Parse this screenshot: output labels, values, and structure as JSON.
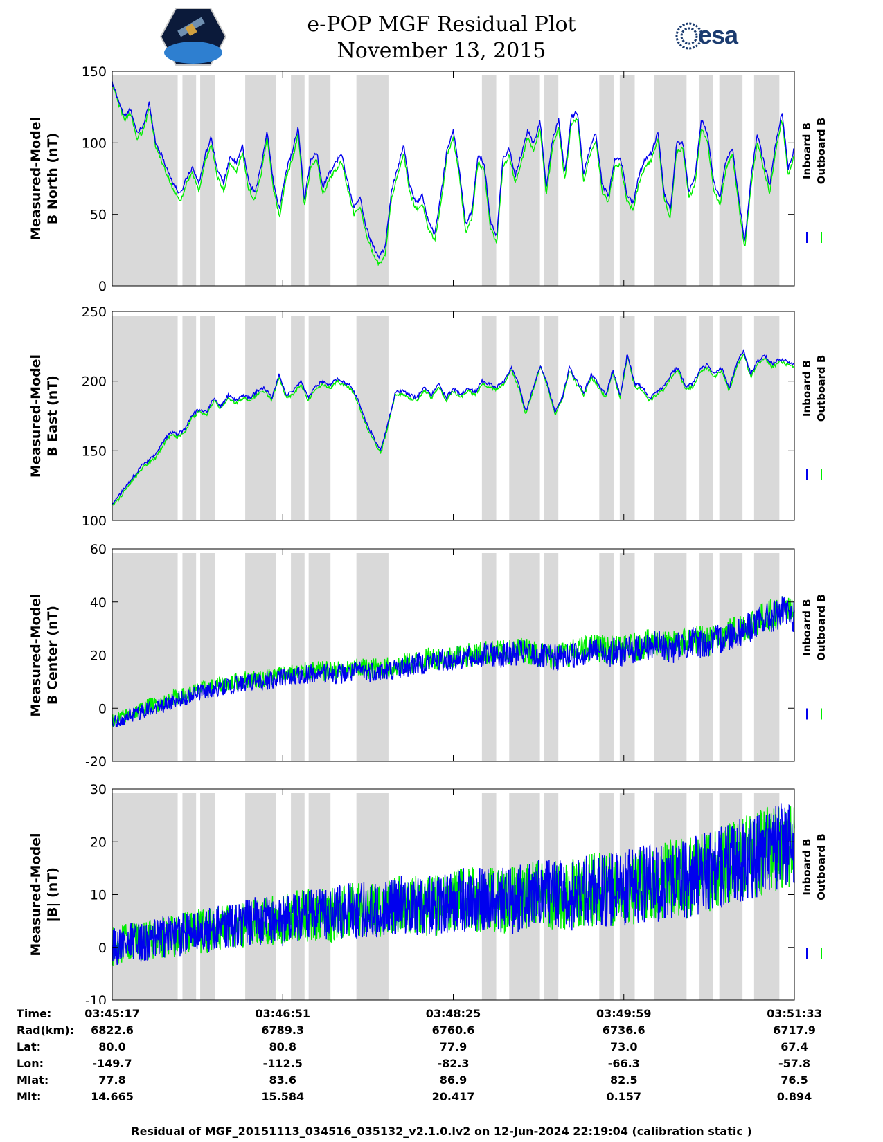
{
  "header": {
    "title": "e-POP MGF Residual Plot",
    "subtitle": "November 13, 2015",
    "logo_left_icon": "satellite-mission-badge-icon",
    "logo_right_text": "esa"
  },
  "colors": {
    "inboard": "#0000ee",
    "outboard": "#00ee00",
    "shade": "#d9d9d9"
  },
  "legend": [
    "Inboard B",
    "Outboard B"
  ],
  "shaded_regions_fraction": [
    [
      0.0,
      0.096
    ],
    [
      0.103,
      0.123
    ],
    [
      0.129,
      0.151
    ],
    [
      0.195,
      0.24
    ],
    [
      0.262,
      0.282
    ],
    [
      0.288,
      0.32
    ],
    [
      0.358,
      0.405
    ],
    [
      0.542,
      0.563
    ],
    [
      0.582,
      0.627
    ],
    [
      0.633,
      0.654
    ],
    [
      0.714,
      0.735
    ],
    [
      0.744,
      0.766
    ],
    [
      0.794,
      0.842
    ],
    [
      0.861,
      0.881
    ],
    [
      0.89,
      0.924
    ],
    [
      0.941,
      0.978
    ]
  ],
  "chart_data": [
    {
      "type": "line",
      "ylabel_lines": [
        "Measured-Model",
        "B North (nT)"
      ],
      "ylim": [
        0,
        150
      ],
      "yticks": [
        0,
        50,
        100,
        150
      ],
      "ytick_labels": [
        "0",
        "50",
        "100",
        "150"
      ],
      "series": [
        {
          "name": "Inboard B",
          "values": [
            142,
            130,
            118,
            124,
            106,
            112,
            128,
            100,
            91,
            80,
            70,
            64,
            76,
            83,
            71,
            92,
            104,
            80,
            72,
            91,
            85,
            98,
            73,
            65,
            83,
            108,
            72,
            54,
            80,
            93,
            111,
            60,
            88,
            93,
            69,
            79,
            86,
            92,
            72,
            55,
            61,
            40,
            28,
            20,
            27,
            65,
            82,
            98,
            70,
            58,
            63,
            45,
            36,
            63,
            96,
            108,
            81,
            42,
            53,
            92,
            85,
            45,
            35,
            88,
            96,
            77,
            92,
            109,
            99,
            116,
            68,
            102,
            116,
            78,
            118,
            122,
            78,
            96,
            107,
            71,
            63,
            88,
            89,
            64,
            58,
            78,
            89,
            93,
            108,
            65,
            53,
            99,
            101,
            66,
            77,
            116,
            106,
            72,
            61,
            88,
            97,
            63,
            30,
            75,
            106,
            88,
            70,
            99,
            122,
            82,
            96
          ]
        },
        {
          "name": "Outboard B",
          "values": [
            141,
            128,
            116,
            121,
            103,
            108,
            125,
            97,
            87,
            76,
            66,
            59,
            72,
            79,
            66,
            87,
            99,
            75,
            67,
            86,
            80,
            93,
            68,
            60,
            78,
            104,
            67,
            49,
            75,
            88,
            106,
            55,
            83,
            88,
            64,
            74,
            81,
            87,
            67,
            50,
            56,
            35,
            23,
            15,
            22,
            60,
            77,
            93,
            65,
            53,
            58,
            40,
            31,
            58,
            91,
            103,
            76,
            37,
            48,
            87,
            80,
            40,
            30,
            83,
            91,
            72,
            87,
            104,
            94,
            111,
            63,
            97,
            111,
            73,
            113,
            117,
            73,
            91,
            102,
            66,
            58,
            83,
            84,
            59,
            53,
            73,
            84,
            88,
            103,
            60,
            48,
            94,
            96,
            61,
            72,
            111,
            101,
            67,
            56,
            83,
            92,
            58,
            25,
            70,
            101,
            83,
            65,
            94,
            117,
            77,
            91
          ]
        }
      ]
    },
    {
      "type": "line",
      "ylabel_lines": [
        "Measured-Model",
        "B East (nT)"
      ],
      "ylim": [
        100,
        250
      ],
      "yticks": [
        100,
        150,
        200,
        250
      ],
      "ytick_labels": [
        "100",
        "150",
        "200",
        "250"
      ],
      "series": [
        {
          "name": "Inboard B",
          "values": [
            112,
            118,
            125,
            132,
            139,
            143,
            147,
            156,
            163,
            162,
            165,
            176,
            180,
            178,
            188,
            182,
            190,
            186,
            190,
            188,
            193,
            195,
            188,
            205,
            190,
            193,
            200,
            188,
            196,
            200,
            197,
            202,
            199,
            196,
            185,
            170,
            160,
            150,
            170,
            192,
            193,
            190,
            188,
            196,
            190,
            198,
            188,
            195,
            190,
            195,
            192,
            200,
            198,
            196,
            200,
            210,
            198,
            178,
            195,
            212,
            198,
            178,
            188,
            210,
            200,
            192,
            205,
            198,
            190,
            208,
            190,
            220,
            198,
            196,
            188,
            192,
            196,
            205,
            210,
            196,
            198,
            208,
            212,
            205,
            210,
            195,
            212,
            222,
            205,
            215,
            218,
            212,
            216,
            214,
            212
          ]
        },
        {
          "name": "Outboard B",
          "values": [
            110,
            116,
            123,
            130,
            137,
            141,
            145,
            154,
            161,
            160,
            163,
            174,
            178,
            176,
            186,
            180,
            188,
            184,
            188,
            186,
            191,
            193,
            186,
            203,
            188,
            191,
            198,
            186,
            194,
            198,
            195,
            200,
            197,
            194,
            183,
            168,
            158,
            148,
            168,
            190,
            191,
            188,
            186,
            194,
            188,
            196,
            186,
            193,
            188,
            193,
            190,
            198,
            196,
            194,
            198,
            208,
            196,
            176,
            193,
            210,
            196,
            176,
            186,
            208,
            198,
            190,
            203,
            196,
            188,
            206,
            188,
            218,
            196,
            194,
            186,
            190,
            194,
            203,
            208,
            194,
            196,
            206,
            210,
            203,
            208,
            193,
            210,
            220,
            203,
            213,
            216,
            210,
            214,
            212,
            210
          ]
        }
      ]
    },
    {
      "type": "line",
      "ylabel_lines": [
        "Measured-Model",
        "B Center (nT)"
      ],
      "ylim": [
        -20,
        60
      ],
      "yticks": [
        -20,
        0,
        20,
        40,
        60
      ],
      "ytick_labels": [
        "-20",
        "0",
        "20",
        "40",
        "60"
      ],
      "series": [
        {
          "name": "Inboard B",
          "values": [
            -6,
            -4,
            -2,
            0,
            1,
            3,
            4,
            6,
            7,
            8,
            9,
            10,
            10,
            11,
            12,
            12,
            13,
            13,
            13,
            13,
            14,
            14,
            14,
            15,
            16,
            17,
            18,
            18,
            19,
            19,
            20,
            20,
            20,
            21,
            20,
            19,
            19,
            20,
            21,
            22,
            21,
            21,
            22,
            23,
            24,
            22,
            24,
            25,
            24,
            26,
            28,
            30,
            32,
            34,
            36,
            34
          ]
        },
        {
          "name": "Outboard B",
          "values": [
            -5,
            -3,
            -1,
            1,
            2,
            4,
            5,
            7,
            8,
            9,
            10,
            11,
            11,
            12,
            13,
            13,
            14,
            14,
            14,
            14,
            15,
            15,
            15,
            16,
            17,
            18,
            19,
            19,
            20,
            20,
            21,
            21,
            21,
            22,
            21,
            20,
            20,
            21,
            22,
            23,
            22,
            22,
            23,
            24,
            25,
            23,
            25,
            26,
            25,
            27,
            29,
            31,
            33,
            35,
            37,
            35
          ]
        }
      ]
    },
    {
      "type": "line",
      "ylabel_lines": [
        "Measured-Model",
        "|B| (nT)"
      ],
      "ylim": [
        -10,
        30
      ],
      "yticks": [
        -10,
        0,
        10,
        20,
        30
      ],
      "ytick_labels": [
        "-10",
        "0",
        "10",
        "20",
        "30"
      ],
      "series": [
        {
          "name": "Inboard B",
          "values": [
            0,
            1,
            1,
            2,
            2,
            3,
            3,
            4,
            4,
            5,
            5,
            5,
            6,
            6,
            6,
            7,
            7,
            7,
            8,
            8,
            8,
            8,
            9,
            9,
            9,
            9,
            9,
            10,
            10,
            10,
            10,
            11,
            11,
            11,
            12,
            12,
            13,
            13,
            14,
            15,
            16,
            17,
            18,
            19,
            20
          ]
        },
        {
          "name": "Outboard B",
          "values": [
            0,
            1,
            1,
            2,
            2,
            3,
            3,
            4,
            4,
            5,
            5,
            5,
            6,
            6,
            6,
            7,
            7,
            7,
            8,
            8,
            8,
            8,
            9,
            9,
            9,
            9,
            9,
            10,
            10,
            10,
            10,
            11,
            11,
            11,
            12,
            12,
            13,
            13,
            14,
            15,
            16,
            17,
            18,
            19,
            20
          ]
        }
      ]
    }
  ],
  "info_table": {
    "labels": [
      "Time:",
      "Rad(km):",
      "Lat:",
      "Lon:",
      "Mlat:",
      "Mlt:"
    ],
    "columns": [
      [
        "03:45:17",
        "6822.6",
        "80.0",
        "-149.7",
        "77.8",
        "14.665"
      ],
      [
        "03:46:51",
        "6789.3",
        "80.8",
        "-112.5",
        "83.6",
        "15.584"
      ],
      [
        "03:48:25",
        "6760.6",
        "77.9",
        "-82.3",
        "86.9",
        "20.417"
      ],
      [
        "03:49:59",
        "6736.6",
        "73.0",
        "-66.3",
        "82.5",
        "0.157"
      ],
      [
        "03:51:33",
        "6717.9",
        "67.4",
        "-57.8",
        "76.5",
        "0.894"
      ]
    ]
  },
  "footer": "Residual of MGF_20151113_034516_035132_v2.1.0.lv2 on 12-Jun-2024 22:19:04 (calibration static )"
}
